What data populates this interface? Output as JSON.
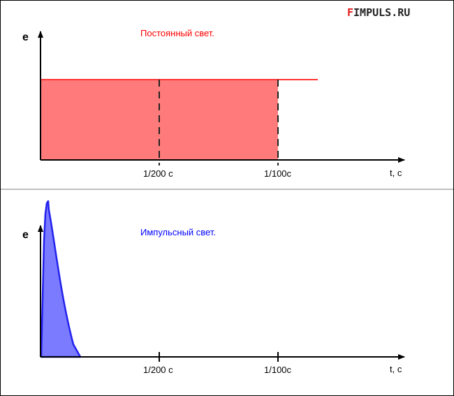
{
  "logo": {
    "first_letter": "F",
    "rest": "IMPULS.RU",
    "first_letter_color": "#e31b1b"
  },
  "top_panel": {
    "caption": "Постоянный свет.",
    "caption_color": "#ff0000",
    "y_label": "e",
    "x_label": "t, c",
    "tick_labels": [
      "1/200 c",
      "1/100c"
    ],
    "fill_color": "#ff7b7b",
    "line_color": "#ff3333"
  },
  "bottom_panel": {
    "caption": "Импульсный свет.",
    "caption_color": "#0000ff",
    "y_label": "e",
    "x_label": "t, c",
    "tick_labels": [
      "1/200 c",
      "1/100c"
    ],
    "fill_color": "#7b7bff",
    "line_color": "#2222ee"
  },
  "divider_color": "#bfbfbf"
}
